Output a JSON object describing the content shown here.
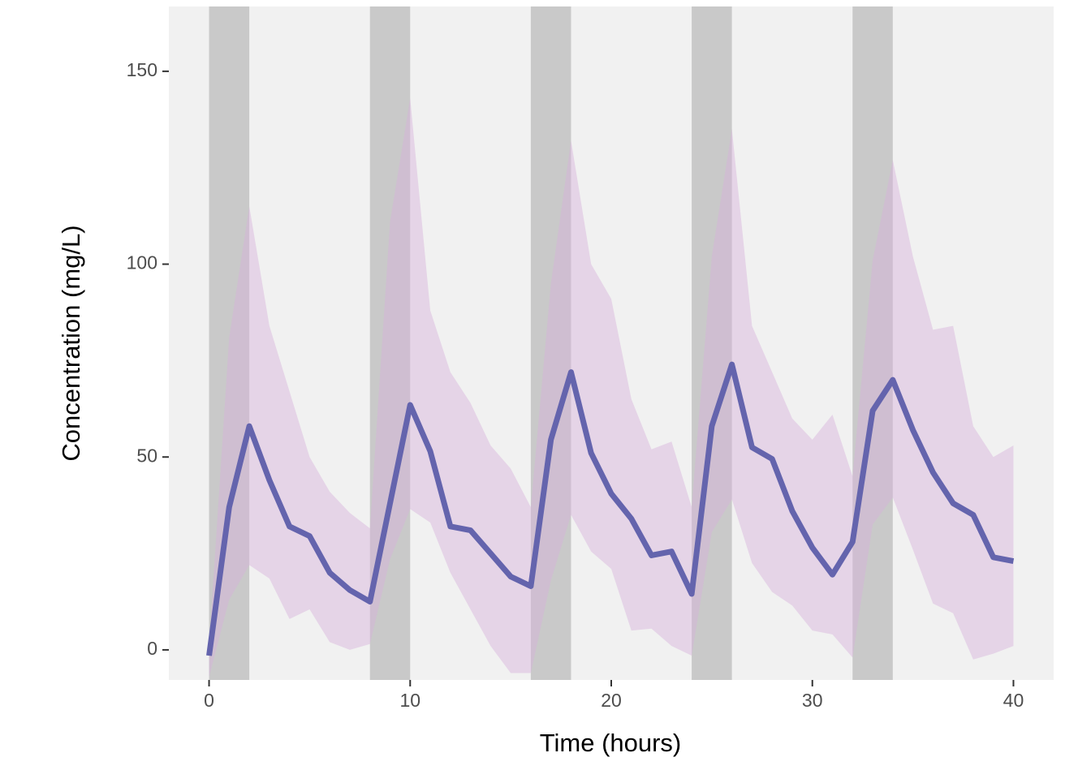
{
  "chart_data": {
    "type": "line",
    "x_label": "Time (hours)",
    "y_label": "Concentration (mg/L)",
    "x": [
      0,
      1,
      2,
      3,
      4,
      5,
      6,
      7,
      8,
      9,
      10,
      11,
      12,
      13,
      14,
      15,
      16,
      17,
      18,
      19,
      20,
      21,
      22,
      23,
      24,
      25,
      26,
      27,
      28,
      29,
      30,
      31,
      32,
      33,
      34,
      35,
      36,
      37,
      38,
      39,
      40
    ],
    "series": [
      {
        "color": "#6464ad",
        "values": [
          -1.5,
          37,
          58,
          44,
          32,
          29.5,
          20,
          15.5,
          12.5,
          38,
          63.5,
          51.5,
          32,
          31,
          25,
          19,
          16.5,
          54.5,
          72,
          51,
          40.5,
          34,
          24.5,
          25.5,
          14.5,
          58,
          74,
          52.5,
          49.5,
          36,
          26.5,
          19.5,
          28,
          62,
          70,
          57,
          46,
          38,
          35,
          24,
          23
        ],
        "band_color": "#d8b2dc",
        "lower": [
          -7,
          13,
          22,
          18.5,
          8,
          10.5,
          2,
          0,
          1.5,
          23.5,
          36.5,
          33,
          20,
          10.5,
          1,
          -6,
          -6,
          18,
          35,
          25.5,
          21,
          5,
          5.5,
          1,
          -1.5,
          30.5,
          39,
          22.5,
          15,
          11.5,
          5,
          4,
          -2,
          32.5,
          39.5,
          26,
          12,
          9.5,
          -2.5,
          -1,
          1
        ],
        "upper": [
          1,
          81,
          115,
          84,
          67,
          50,
          41,
          35.5,
          31.5,
          111,
          143,
          88,
          72,
          64,
          53,
          47,
          37,
          95,
          132,
          100,
          91,
          65,
          52,
          54,
          37,
          102,
          135,
          84,
          72,
          60,
          54.5,
          61,
          45,
          101,
          127,
          102,
          83,
          84,
          58,
          50,
          53
        ]
      }
    ],
    "shaded_intervals": [
      [
        0,
        2
      ],
      [
        8,
        10
      ],
      [
        16,
        18
      ],
      [
        24,
        26
      ],
      [
        32,
        34
      ]
    ],
    "shade_color": "#c9c9c9",
    "background": "#f1f1f1",
    "xlim": [
      -2,
      42
    ],
    "xticks": [
      0,
      10,
      20,
      30,
      40
    ],
    "ylim": [
      -7.8,
      166.8
    ],
    "yticks": [
      0,
      50,
      100,
      150
    ],
    "grid": false
  }
}
